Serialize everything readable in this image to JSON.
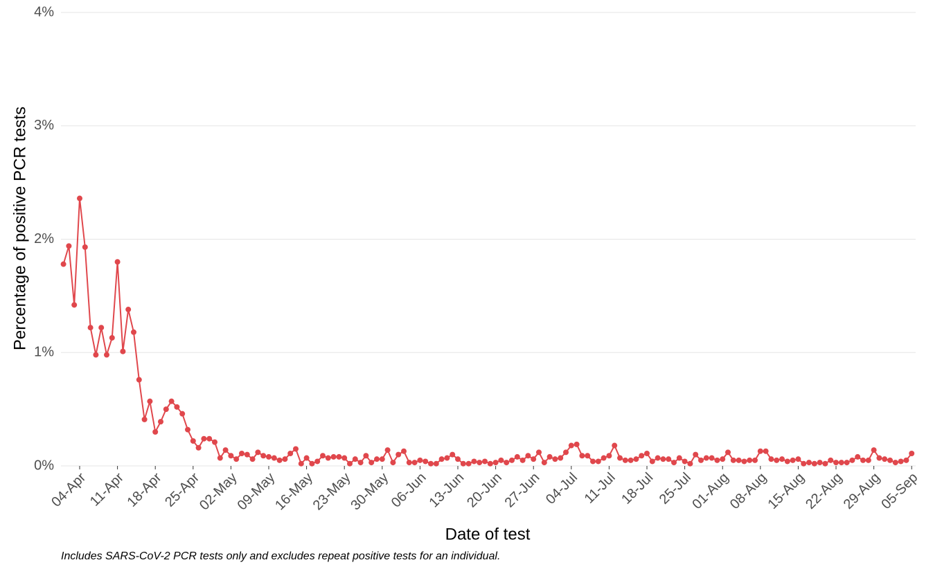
{
  "chart_data": {
    "type": "line",
    "y_label": "Percentage of positive PCR tests",
    "x_label": "Date of test",
    "caption": "Includes SARS-CoV-2 PCR tests only and excludes repeat positive tests for an individual.",
    "color": "#e0474c",
    "grid": true,
    "ylim": [
      0,
      4
    ],
    "yticks": [
      {
        "value": 0,
        "label": "0%"
      },
      {
        "value": 1,
        "label": "1%"
      },
      {
        "value": 2,
        "label": "2%"
      },
      {
        "value": 3,
        "label": "3%"
      },
      {
        "value": 4,
        "label": "4%"
      }
    ],
    "categories": [
      null,
      null,
      null,
      "04-Apr",
      null,
      null,
      null,
      null,
      null,
      null,
      "11-Apr",
      null,
      null,
      null,
      null,
      null,
      null,
      "18-Apr",
      null,
      null,
      null,
      null,
      null,
      null,
      "25-Apr",
      null,
      null,
      null,
      null,
      null,
      null,
      "02-May",
      null,
      null,
      null,
      null,
      null,
      null,
      "09-May",
      null,
      null,
      null,
      null,
      null,
      null,
      "16-May",
      null,
      null,
      null,
      null,
      null,
      null,
      "23-May",
      null,
      null,
      null,
      null,
      null,
      null,
      "30-May",
      null,
      null,
      null,
      null,
      null,
      null,
      "06-Jun",
      null,
      null,
      null,
      null,
      null,
      null,
      "13-Jun",
      null,
      null,
      null,
      null,
      null,
      null,
      "20-Jun",
      null,
      null,
      null,
      null,
      null,
      null,
      "27-Jun",
      null,
      null,
      null,
      null,
      null,
      null,
      "04-Jul",
      null,
      null,
      null,
      null,
      null,
      null,
      "11-Jul",
      null,
      null,
      null,
      null,
      null,
      null,
      "18-Jul",
      null,
      null,
      null,
      null,
      null,
      null,
      "25-Jul",
      null,
      null,
      null,
      null,
      null,
      null,
      "01-Aug",
      null,
      null,
      null,
      null,
      null,
      null,
      "08-Aug",
      null,
      null,
      null,
      null,
      null,
      null,
      "15-Aug",
      null,
      null,
      null,
      null,
      null,
      null,
      "22-Aug",
      null,
      null,
      null,
      null,
      null,
      null,
      "29-Aug",
      null,
      null,
      null,
      null,
      null,
      null,
      "05-Sep"
    ],
    "values": [
      1.78,
      1.94,
      1.42,
      2.36,
      1.93,
      1.22,
      0.98,
      1.22,
      0.98,
      1.13,
      1.8,
      1.01,
      1.38,
      1.18,
      0.76,
      0.41,
      0.57,
      0.3,
      0.39,
      0.5,
      0.57,
      0.52,
      0.46,
      0.32,
      0.22,
      0.16,
      0.24,
      0.24,
      0.21,
      0.07,
      0.14,
      0.09,
      0.06,
      0.11,
      0.1,
      0.06,
      0.12,
      0.09,
      0.08,
      0.07,
      0.05,
      0.06,
      0.11,
      0.15,
      0.02,
      0.07,
      0.02,
      0.04,
      0.09,
      0.07,
      0.08,
      0.08,
      0.07,
      0.02,
      0.06,
      0.03,
      0.09,
      0.03,
      0.06,
      0.06,
      0.14,
      0.03,
      0.1,
      0.13,
      0.03,
      0.03,
      0.05,
      0.04,
      0.02,
      0.02,
      0.06,
      0.07,
      0.1,
      0.06,
      0.02,
      0.02,
      0.04,
      0.03,
      0.04,
      0.02,
      0.03,
      0.05,
      0.03,
      0.05,
      0.08,
      0.05,
      0.09,
      0.06,
      0.12,
      0.03,
      0.08,
      0.06,
      0.07,
      0.12,
      0.18,
      0.19,
      0.09,
      0.09,
      0.04,
      0.04,
      0.07,
      0.09,
      0.18,
      0.07,
      0.05,
      0.05,
      0.06,
      0.09,
      0.11,
      0.04,
      0.07,
      0.06,
      0.06,
      0.03,
      0.07,
      0.04,
      0.02,
      0.1,
      0.05,
      0.07,
      0.07,
      0.05,
      0.06,
      0.12,
      0.05,
      0.05,
      0.04,
      0.05,
      0.05,
      0.13,
      0.13,
      0.06,
      0.05,
      0.06,
      0.04,
      0.05,
      0.06,
      0.02,
      0.03,
      0.02,
      0.03,
      0.02,
      0.05,
      0.03,
      0.03,
      0.03,
      0.05,
      0.08,
      0.05,
      0.05,
      0.14,
      0.07,
      0.06,
      0.05,
      0.03,
      0.04,
      0.05,
      0.11
    ]
  }
}
